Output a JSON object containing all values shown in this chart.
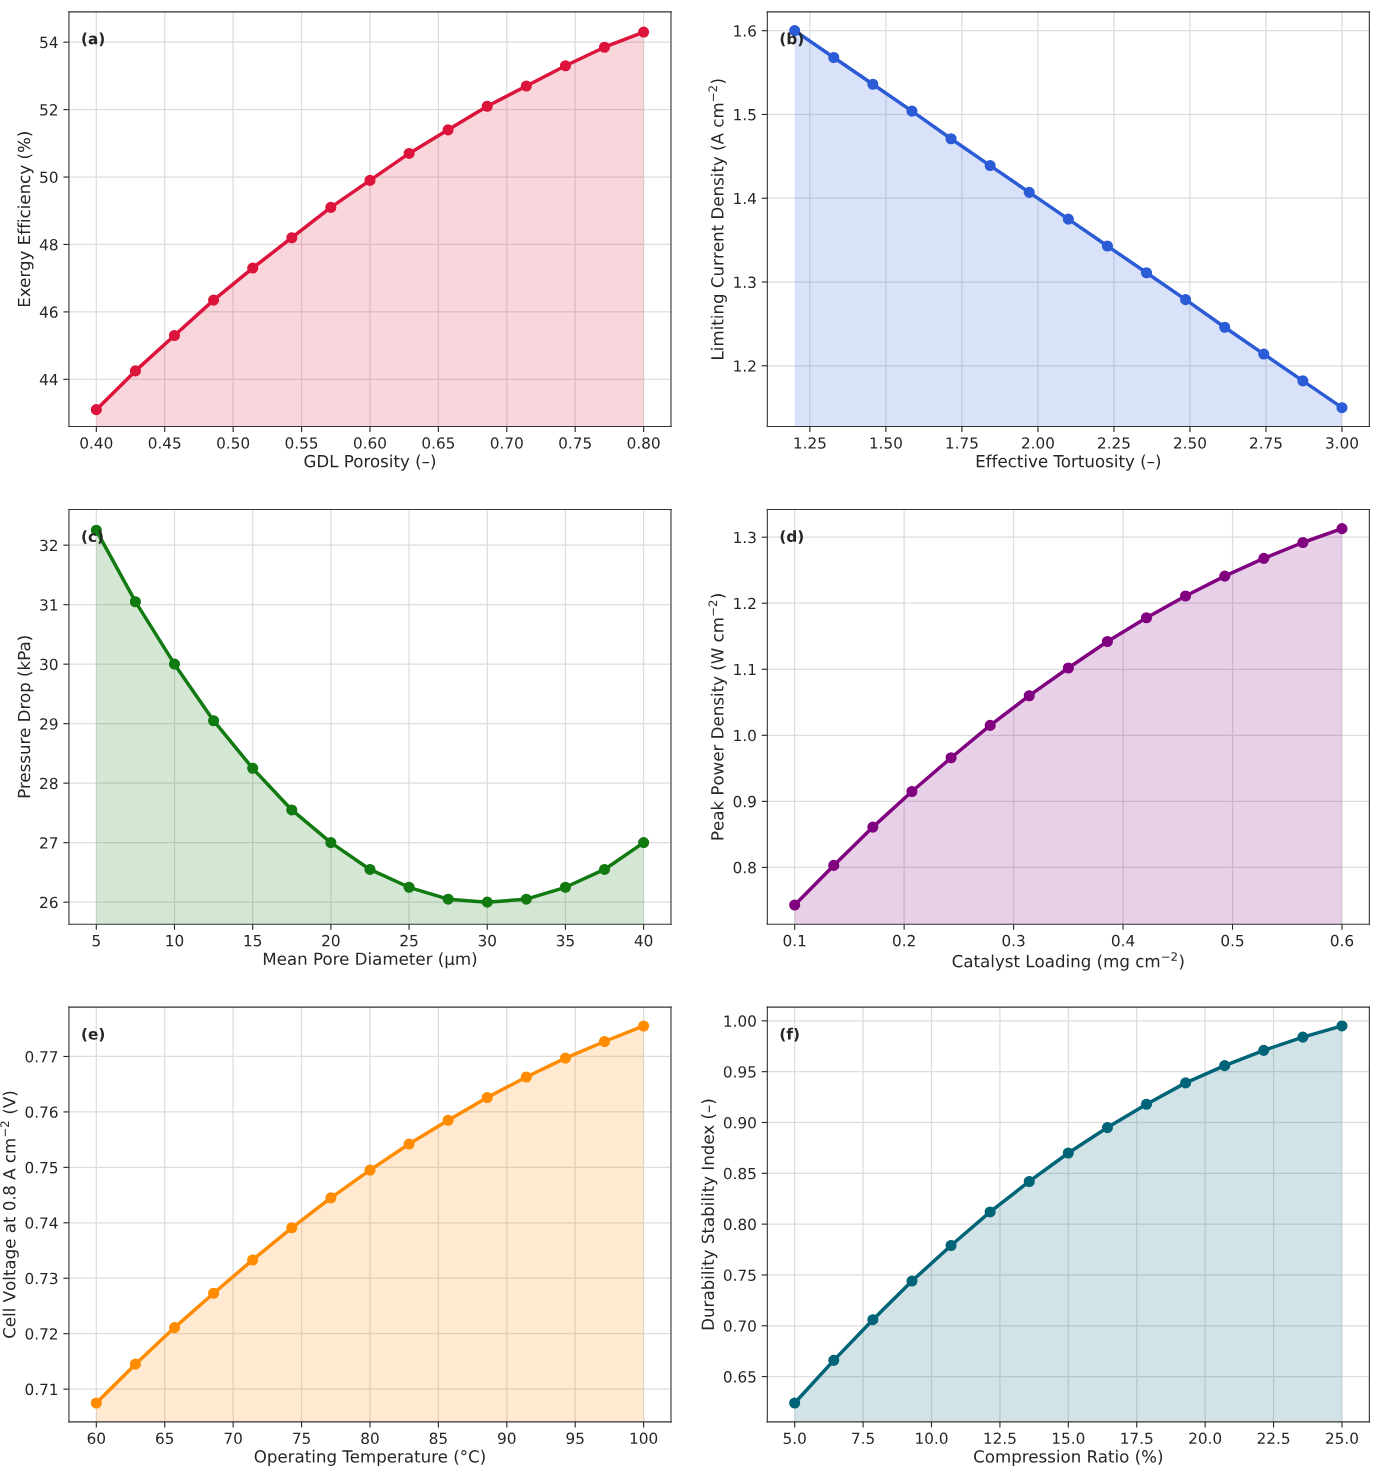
{
  "chart_data": [
    {
      "type": "area",
      "xlabel": "GDL Porosity (–)",
      "ylabel": "Exergy Efficiency (%)",
      "annotations": [
        "(a)"
      ],
      "grid": true,
      "marker": "circle",
      "x": [
        0.4,
        0.4286,
        0.4571,
        0.4857,
        0.5143,
        0.5429,
        0.5714,
        0.6,
        0.6286,
        0.6571,
        0.6857,
        0.7143,
        0.7429,
        0.7714,
        0.8
      ],
      "series": [
        {
          "color": "#dc143c",
          "values": [
            43.1,
            44.25,
            45.3,
            46.35,
            47.3,
            48.2,
            49.1,
            49.9,
            50.7,
            51.4,
            52.1,
            52.7,
            53.3,
            53.85,
            54.3
          ]
        }
      ],
      "xlim": [
        0.38,
        0.82
      ],
      "ylim": [
        42.6,
        54.9
      ],
      "xticks": [
        {
          "value": 0.4,
          "label": "0.40"
        },
        {
          "value": 0.45,
          "label": "0.45"
        },
        {
          "value": 0.5,
          "label": "0.50"
        },
        {
          "value": 0.55,
          "label": "0.55"
        },
        {
          "value": 0.6,
          "label": "0.60"
        },
        {
          "value": 0.65,
          "label": "0.65"
        },
        {
          "value": 0.7,
          "label": "0.70"
        },
        {
          "value": 0.75,
          "label": "0.75"
        },
        {
          "value": 0.8,
          "label": "0.80"
        }
      ],
      "yticks": [
        44,
        46,
        48,
        50,
        52,
        54
      ]
    },
    {
      "type": "area",
      "xlabel": "Effective Tortuosity (–)",
      "ylabel": "Limiting Current Density (A cm$^{−2}$)",
      "annotations": [
        "(b)"
      ],
      "grid": true,
      "marker": "circle",
      "x": [
        1.2,
        1.3286,
        1.4571,
        1.5857,
        1.7143,
        1.8429,
        1.9714,
        2.1,
        2.2286,
        2.3571,
        2.4857,
        2.6143,
        2.7429,
        2.8714,
        3.0
      ],
      "series": [
        {
          "color": "#2b5cd6",
          "values": [
            1.6,
            1.568,
            1.536,
            1.504,
            1.471,
            1.439,
            1.407,
            1.375,
            1.343,
            1.311,
            1.279,
            1.246,
            1.214,
            1.182,
            1.15
          ]
        }
      ],
      "xlim": [
        1.11,
        3.09
      ],
      "ylim": [
        1.1275,
        1.6225
      ],
      "xticks": [
        1.25,
        {
          "value": 1.5,
          "label": "1.50"
        },
        1.75,
        {
          "value": 2.0,
          "label": "2.00"
        },
        2.25,
        {
          "value": 2.5,
          "label": "2.50"
        },
        2.75,
        {
          "value": 3.0,
          "label": "3.00"
        }
      ],
      "yticks": [
        1.2,
        1.3,
        1.4,
        1.5,
        1.6
      ]
    },
    {
      "type": "area",
      "xlabel": "Mean Pore Diameter (μm)",
      "ylabel": "Pressure Drop (kPa)",
      "annotations": [
        "(c)"
      ],
      "grid": true,
      "marker": "circle",
      "x": [
        5,
        7.5,
        10,
        12.5,
        15,
        17.5,
        20,
        22.5,
        25,
        27.5,
        30,
        32.5,
        35,
        37.5,
        40
      ],
      "series": [
        {
          "color": "#117a11",
          "values": [
            32.25,
            31.05,
            30.0,
            29.05,
            28.25,
            27.55,
            27.0,
            26.55,
            26.25,
            26.05,
            26.0,
            26.05,
            26.25,
            26.55,
            27.0
          ]
        }
      ],
      "xlim": [
        3.25,
        41.75
      ],
      "ylim": [
        25.63,
        32.6
      ],
      "xticks": [
        5,
        10,
        15,
        20,
        25,
        30,
        35,
        40
      ],
      "yticks": [
        26,
        27,
        28,
        29,
        30,
        31,
        32
      ]
    },
    {
      "type": "area",
      "xlabel": "Catalyst Loading (mg cm$^{−2}$)",
      "ylabel": "Peak Power Density (W cm$^{−2}$)",
      "annotations": [
        "(d)"
      ],
      "grid": true,
      "marker": "circle",
      "x": [
        0.1,
        0.1357,
        0.1714,
        0.2071,
        0.2429,
        0.2786,
        0.3143,
        0.35,
        0.3857,
        0.4214,
        0.4571,
        0.4929,
        0.5286,
        0.5643,
        0.6
      ],
      "series": [
        {
          "color": "#800080",
          "values": [
            0.743,
            0.803,
            0.861,
            0.915,
            0.966,
            1.015,
            1.06,
            1.102,
            1.142,
            1.178,
            1.211,
            1.241,
            1.268,
            1.292,
            1.313
          ]
        }
      ],
      "xlim": [
        0.075,
        0.625
      ],
      "ylim": [
        0.714,
        1.342
      ],
      "xticks": [
        0.1,
        0.2,
        0.3,
        0.4,
        0.5,
        0.6
      ],
      "yticks": [
        0.8,
        0.9,
        {
          "value": 1.0,
          "label": "1.0"
        },
        1.1,
        1.2,
        1.3
      ]
    },
    {
      "type": "area",
      "xlabel": "Operating Temperature (°C)",
      "ylabel": "Cell Voltage at 0.8 A cm$^{−2}$ (V)",
      "annotations": [
        "(e)"
      ],
      "grid": true,
      "marker": "circle",
      "x": [
        60,
        62.857,
        65.714,
        68.571,
        71.429,
        74.286,
        77.143,
        80,
        82.857,
        85.714,
        88.571,
        91.429,
        94.286,
        97.143,
        100
      ],
      "series": [
        {
          "color": "#ff8c00",
          "values": [
            0.7075,
            0.7145,
            0.7211,
            0.7273,
            0.7333,
            0.7391,
            0.7445,
            0.7495,
            0.7542,
            0.7585,
            0.7626,
            0.7663,
            0.7697,
            0.7727,
            0.7755
          ]
        }
      ],
      "xlim": [
        58,
        102
      ],
      "ylim": [
        0.7041,
        0.7789
      ],
      "xticks": [
        60,
        65,
        70,
        75,
        80,
        85,
        90,
        95,
        100
      ],
      "yticks": [
        0.71,
        0.72,
        0.73,
        0.74,
        0.75,
        0.76,
        0.77
      ]
    },
    {
      "type": "area",
      "xlabel": "Compression Ratio (%)",
      "ylabel": "Durability Stability Index (–)",
      "annotations": [
        "(f)"
      ],
      "grid": true,
      "marker": "circle",
      "x": [
        5,
        6.4286,
        7.8571,
        9.2857,
        10.7143,
        12.1429,
        13.5714,
        15,
        16.4286,
        17.8571,
        19.2857,
        20.7143,
        22.1429,
        23.5714,
        25
      ],
      "series": [
        {
          "color": "#006478",
          "values": [
            0.624,
            0.666,
            0.706,
            0.744,
            0.779,
            0.812,
            0.842,
            0.87,
            0.895,
            0.918,
            0.939,
            0.956,
            0.971,
            0.984,
            0.995
          ]
        }
      ],
      "xlim": [
        4.0,
        26.0
      ],
      "ylim": [
        0.6055,
        1.0135
      ],
      "xticks": [
        {
          "value": 5,
          "label": "5.0"
        },
        7.5,
        {
          "value": 10,
          "label": "10.0"
        },
        12.5,
        {
          "value": 15,
          "label": "15.0"
        },
        17.5,
        {
          "value": 20,
          "label": "20.0"
        },
        22.5,
        {
          "value": 25,
          "label": "25.0"
        }
      ],
      "yticks": [
        0.65,
        {
          "value": 0.7,
          "label": "0.70"
        },
        0.75,
        {
          "value": 0.8,
          "label": "0.80"
        },
        0.85,
        {
          "value": 0.9,
          "label": "0.90"
        },
        0.95,
        {
          "value": 1.0,
          "label": "1.00"
        }
      ]
    }
  ]
}
